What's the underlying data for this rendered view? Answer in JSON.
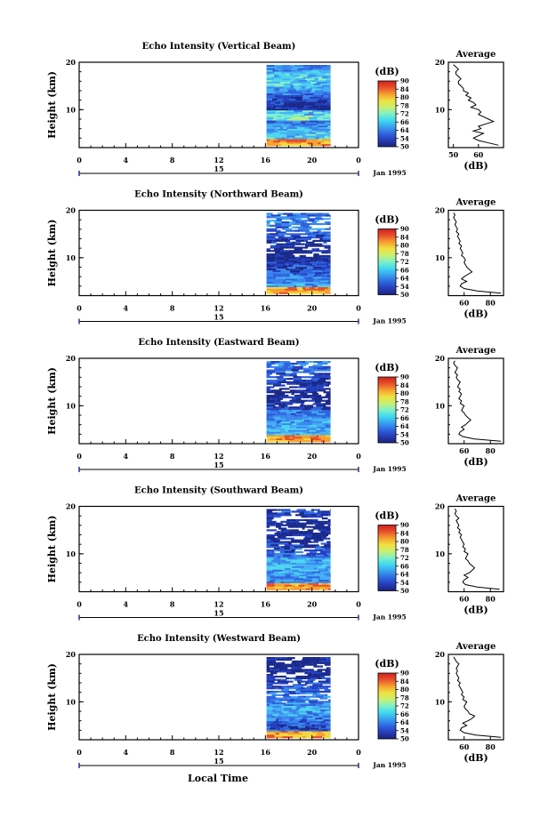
{
  "figure": {
    "xlabel": "Local Time",
    "colorbar_unit": "(dB)",
    "colorbar_ticks": [
      "50",
      "54",
      "64",
      "66",
      "72",
      "78",
      "80",
      "84",
      "90"
    ],
    "colorbar_colors": [
      "#1a237e",
      "#283cb8",
      "#2f66e0",
      "#3aa0f0",
      "#40d8f0",
      "#7ff0c8",
      "#c8f070",
      "#f0e040",
      "#f5a030",
      "#e8502a",
      "#d02020"
    ],
    "average_title": "Average",
    "average_xlabel": "(dB)"
  },
  "chart_data": [
    {
      "type": "heatmap",
      "title": "Echo Intensity (Vertical Beam)",
      "ylabel": "Height (km)",
      "x_ticks": [
        "0",
        "4",
        "8",
        "12",
        "16",
        "20",
        "0"
      ],
      "ytick_labels": [
        "10",
        "20"
      ],
      "date_day": "15",
      "date_label": "Jan 1995",
      "xlim": [
        0,
        24
      ],
      "ylim": [
        2,
        20
      ],
      "data_window_hours": [
        16.1,
        21.6
      ],
      "average": {
        "xtick_labels": [
          "50",
          "60"
        ],
        "xlim": [
          48,
          70
        ],
        "ylim": [
          2,
          20
        ],
        "heights": [
          2.5,
          3,
          3.5,
          4,
          4.5,
          5,
          5.5,
          6,
          6.5,
          7,
          7.5,
          8,
          8.5,
          9,
          9.5,
          10,
          10.5,
          11,
          11.5,
          12,
          12.5,
          13,
          13.5,
          14,
          14.5,
          15,
          15.5,
          16,
          16.5,
          17,
          17.5,
          18,
          18.5,
          19,
          19.5
        ],
        "values": [
          68,
          64,
          60,
          58,
          60,
          62,
          58,
          61,
          60,
          63,
          66,
          64,
          62,
          60,
          61,
          60,
          57,
          59,
          58,
          56,
          57,
          55,
          56,
          54,
          54,
          53,
          52,
          52,
          53,
          52,
          51,
          51,
          52,
          51,
          50
        ]
      }
    },
    {
      "type": "heatmap",
      "title": "Echo Intensity (Northward Beam)",
      "ylabel": "Height (km)",
      "x_ticks": [
        "0",
        "4",
        "8",
        "12",
        "16",
        "20",
        "0"
      ],
      "ytick_labels": [
        "10",
        "20"
      ],
      "date_day": "15",
      "date_label": "Jan 1995",
      "xlim": [
        0,
        24
      ],
      "ylim": [
        2,
        20
      ],
      "data_window_hours": [
        16.1,
        21.6
      ],
      "average": {
        "xtick_labels": [
          "60",
          "80"
        ],
        "xlim": [
          48,
          90
        ],
        "ylim": [
          2,
          20
        ],
        "heights": [
          2.5,
          3,
          3.5,
          4,
          4.5,
          5,
          5.5,
          6,
          6.5,
          7,
          7.5,
          8,
          8.5,
          9,
          9.5,
          10,
          10.5,
          11,
          11.5,
          12,
          12.5,
          13,
          13.5,
          14,
          14.5,
          15,
          15.5,
          16,
          16.5,
          17,
          17.5,
          18,
          18.5,
          19,
          19.5
        ],
        "values": [
          88,
          70,
          60,
          57,
          58,
          62,
          58,
          60,
          63,
          66,
          64,
          62,
          61,
          60,
          61,
          60,
          58,
          59,
          58,
          57,
          58,
          56,
          57,
          56,
          55,
          56,
          54,
          55,
          54,
          53,
          54,
          53,
          52,
          53,
          52
        ]
      }
    },
    {
      "type": "heatmap",
      "title": "Echo Intensity (Eastward Beam)",
      "ylabel": "Height (km)",
      "x_ticks": [
        "0",
        "4",
        "8",
        "12",
        "16",
        "20",
        "0"
      ],
      "ytick_labels": [
        "10",
        "20"
      ],
      "date_day": "15",
      "date_label": "Jan 1995",
      "xlim": [
        0,
        24
      ],
      "ylim": [
        2,
        20
      ],
      "data_window_hours": [
        16.1,
        21.6
      ],
      "average": {
        "xtick_labels": [
          "60",
          "80"
        ],
        "xlim": [
          48,
          90
        ],
        "ylim": [
          2,
          20
        ],
        "heights": [
          2.5,
          3,
          3.5,
          4,
          4.5,
          5,
          5.5,
          6,
          6.5,
          7,
          7.5,
          8,
          8.5,
          9,
          9.5,
          10,
          10.5,
          11,
          11.5,
          12,
          12.5,
          13,
          13.5,
          14,
          14.5,
          15,
          15.5,
          16,
          16.5,
          17,
          17.5,
          18,
          18.5,
          19,
          19.5
        ],
        "values": [
          88,
          68,
          59,
          56,
          57,
          60,
          58,
          61,
          63,
          65,
          63,
          61,
          60,
          58,
          59,
          60,
          57,
          58,
          56,
          57,
          58,
          56,
          57,
          55,
          56,
          57,
          55,
          54,
          55,
          53,
          54,
          55,
          53,
          52,
          53
        ]
      }
    },
    {
      "type": "heatmap",
      "title": "Echo Intensity (Southward Beam)",
      "ylabel": "Height (km)",
      "x_ticks": [
        "0",
        "4",
        "8",
        "12",
        "16",
        "20",
        "0"
      ],
      "ytick_labels": [
        "10",
        "20"
      ],
      "date_day": "15",
      "date_label": "Jan 1995",
      "xlim": [
        0,
        24
      ],
      "ylim": [
        2,
        20
      ],
      "data_window_hours": [
        16.1,
        21.6
      ],
      "average": {
        "xtick_labels": [
          "60",
          "80"
        ],
        "xlim": [
          48,
          90
        ],
        "ylim": [
          2,
          20
        ],
        "heights": [
          2.5,
          3,
          3.5,
          4,
          4.5,
          5,
          5.5,
          6,
          6.5,
          7,
          7.5,
          8,
          8.5,
          9,
          9.5,
          10,
          10.5,
          11,
          11.5,
          12,
          12.5,
          13,
          13.5,
          14,
          14.5,
          15,
          15.5,
          16,
          16.5,
          17,
          17.5,
          18,
          18.5,
          19,
          19.5
        ],
        "values": [
          87,
          70,
          61,
          59,
          60,
          63,
          60,
          64,
          66,
          68,
          66,
          64,
          63,
          61,
          62,
          63,
          60,
          61,
          59,
          60,
          59,
          58,
          57,
          58,
          56,
          57,
          55,
          56,
          55,
          54,
          56,
          54,
          53,
          54,
          53
        ]
      }
    },
    {
      "type": "heatmap",
      "title": "Echo Intensity (Westward Beam)",
      "ylabel": "Height (km)",
      "x_ticks": [
        "0",
        "4",
        "8",
        "12",
        "16",
        "20",
        "0"
      ],
      "ytick_labels": [
        "10",
        "20"
      ],
      "date_day": "15",
      "date_label": "Jan 1995",
      "xlim": [
        0,
        24
      ],
      "ylim": [
        2,
        20
      ],
      "data_window_hours": [
        16.1,
        21.6
      ],
      "average": {
        "xtick_labels": [
          "60",
          "80"
        ],
        "xlim": [
          48,
          90
        ],
        "ylim": [
          2,
          20
        ],
        "heights": [
          2.5,
          3,
          3.5,
          4,
          4.5,
          5,
          5.5,
          6,
          6.5,
          7,
          7.5,
          8,
          8.5,
          9,
          9.5,
          10,
          10.5,
          11,
          11.5,
          12,
          12.5,
          13,
          13.5,
          14,
          14.5,
          15,
          15.5,
          16,
          16.5,
          17,
          17.5,
          18,
          18.5,
          19,
          19.5
        ],
        "values": [
          88,
          69,
          60,
          57,
          58,
          62,
          59,
          63,
          66,
          68,
          64,
          63,
          61,
          60,
          61,
          62,
          59,
          60,
          58,
          59,
          58,
          57,
          56,
          57,
          55,
          56,
          55,
          54,
          55,
          54,
          55,
          56,
          54,
          53,
          52
        ]
      }
    }
  ]
}
